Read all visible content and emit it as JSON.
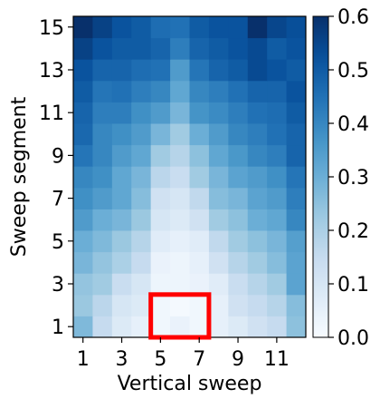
{
  "chart_data": {
    "type": "heatmap",
    "xlabel": "Vertical sweep",
    "ylabel": "Sweep segment",
    "x_ticks": [
      "1",
      "3",
      "5",
      "7",
      "9",
      "11"
    ],
    "y_ticks": [
      "1",
      "3",
      "5",
      "7",
      "9",
      "11",
      "13",
      "15"
    ],
    "colorbar": {
      "min": 0.0,
      "max": 0.6,
      "ticks": [
        "0.0",
        "0.1",
        "0.2",
        "0.3",
        "0.4",
        "0.5",
        "0.6"
      ],
      "colormap": "Blues"
    },
    "columns": [
      1,
      2,
      3,
      4,
      5,
      6,
      7,
      8,
      9,
      10,
      11,
      12
    ],
    "rows": [
      1,
      2,
      3,
      4,
      5,
      6,
      7,
      8,
      9,
      10,
      11,
      12,
      13,
      14,
      15
    ],
    "values": [
      [
        0.27,
        0.15,
        0.08,
        0.05,
        0.02,
        0.04,
        0.02,
        0.05,
        0.08,
        0.12,
        0.15,
        0.25
      ],
      [
        0.23,
        0.17,
        0.1,
        0.08,
        0.02,
        0.01,
        0.02,
        0.05,
        0.12,
        0.15,
        0.18,
        0.26
      ],
      [
        0.24,
        0.22,
        0.14,
        0.1,
        0.03,
        0.03,
        0.04,
        0.07,
        0.14,
        0.18,
        0.22,
        0.33
      ],
      [
        0.28,
        0.24,
        0.2,
        0.15,
        0.04,
        0.03,
        0.05,
        0.12,
        0.18,
        0.22,
        0.26,
        0.33
      ],
      [
        0.3,
        0.27,
        0.23,
        0.18,
        0.07,
        0.05,
        0.07,
        0.16,
        0.22,
        0.25,
        0.28,
        0.34
      ],
      [
        0.35,
        0.3,
        0.28,
        0.23,
        0.1,
        0.08,
        0.12,
        0.22,
        0.25,
        0.3,
        0.32,
        0.4
      ],
      [
        0.38,
        0.35,
        0.32,
        0.26,
        0.12,
        0.1,
        0.16,
        0.26,
        0.28,
        0.33,
        0.35,
        0.42
      ],
      [
        0.4,
        0.38,
        0.32,
        0.28,
        0.17,
        0.14,
        0.22,
        0.28,
        0.33,
        0.35,
        0.38,
        0.44
      ],
      [
        0.44,
        0.4,
        0.35,
        0.32,
        0.22,
        0.18,
        0.25,
        0.32,
        0.36,
        0.4,
        0.42,
        0.48
      ],
      [
        0.47,
        0.4,
        0.38,
        0.35,
        0.28,
        0.22,
        0.3,
        0.35,
        0.4,
        0.42,
        0.45,
        0.48
      ],
      [
        0.48,
        0.42,
        0.42,
        0.38,
        0.35,
        0.28,
        0.37,
        0.39,
        0.42,
        0.45,
        0.46,
        0.5
      ],
      [
        0.5,
        0.44,
        0.45,
        0.42,
        0.4,
        0.32,
        0.4,
        0.42,
        0.45,
        0.48,
        0.48,
        0.52
      ],
      [
        0.52,
        0.48,
        0.48,
        0.46,
        0.45,
        0.35,
        0.44,
        0.48,
        0.5,
        0.54,
        0.52,
        0.5
      ],
      [
        0.56,
        0.52,
        0.5,
        0.5,
        0.48,
        0.42,
        0.48,
        0.5,
        0.52,
        0.54,
        0.5,
        0.52
      ],
      [
        0.6,
        0.56,
        0.52,
        0.5,
        0.46,
        0.45,
        0.5,
        0.52,
        0.52,
        0.6,
        0.55,
        0.53
      ]
    ],
    "highlight": {
      "color": "#ff0000",
      "x_range": [
        4.5,
        7.5
      ],
      "y_range": [
        0.5,
        2.5
      ]
    }
  }
}
